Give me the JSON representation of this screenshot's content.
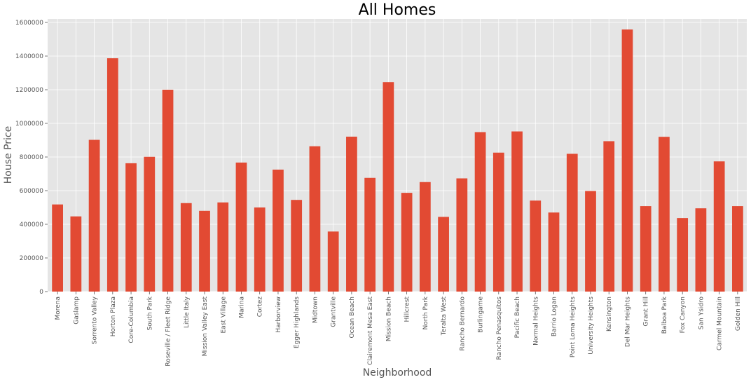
{
  "chart_data": {
    "type": "bar",
    "title": "All Homes",
    "xlabel": "Neighborhood",
    "ylabel": "House Price",
    "ylim": [
      0,
      1600000
    ],
    "yticks": [
      0,
      200000,
      400000,
      600000,
      800000,
      1000000,
      1200000,
      1400000,
      1600000
    ],
    "grid": true,
    "categories": [
      "Morena",
      "Gaslamp",
      "Sorrento Valley",
      "Horton Plaza",
      "Core-Columbia",
      "South Park",
      "Roseville / Fleet Ridge",
      "Little Italy",
      "Mission Valley East",
      "East Village",
      "Marina",
      "Cortez",
      "Harborview",
      "Egger Highlands",
      "Midtown",
      "Grantville",
      "Ocean Beach",
      "Clairemont Mesa East",
      "Mission Beach",
      "Hillcrest",
      "North Park",
      "Teralta West",
      "Rancho Bernardo",
      "Burlingame",
      "Rancho Penasquitos",
      "Pacific Beach",
      "Normal Heights",
      "Barrio Logan",
      "Point Loma Heights",
      "University Heights",
      "Kensington",
      "Del Mar Heights",
      "Grant Hill",
      "Balboa Park",
      "Fox Canyon",
      "San Ysidro",
      "Carmel Mountain",
      "Golden Hill"
    ],
    "values": [
      518000,
      447000,
      902000,
      1387000,
      763000,
      801000,
      1200000,
      526000,
      480000,
      530000,
      767000,
      500000,
      725000,
      545000,
      864000,
      357000,
      921000,
      676000,
      1245000,
      587000,
      651000,
      444000,
      673000,
      948000,
      826000,
      952000,
      541000,
      470000,
      819000,
      598000,
      894000,
      1558000,
      508000,
      920000,
      437000,
      495000,
      774000,
      508000
    ],
    "colors": {
      "bar": "#E24A33",
      "plot_bg": "#E5E5E5",
      "grid": "#FFFFFF"
    }
  }
}
